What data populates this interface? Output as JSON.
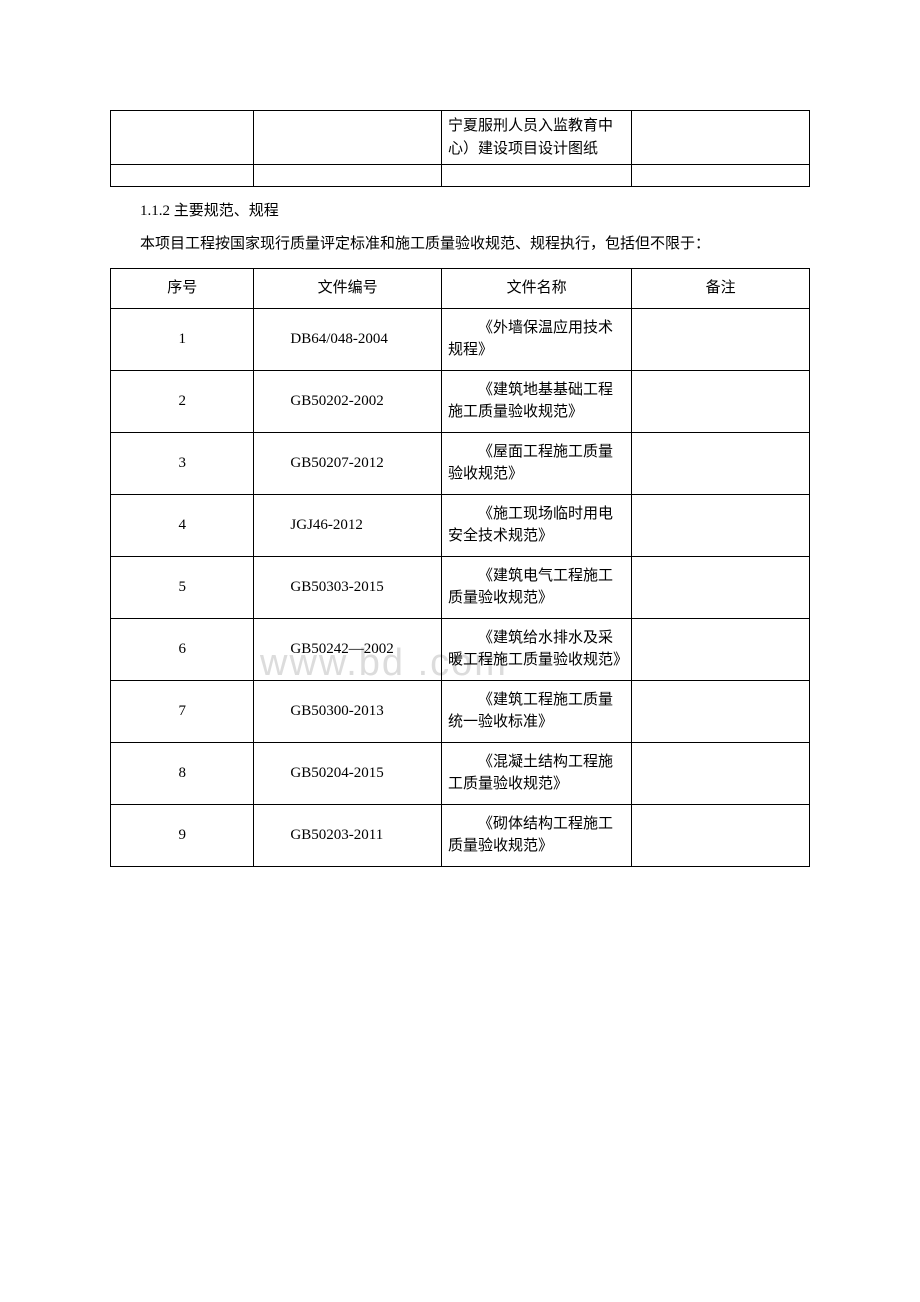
{
  "colors": {
    "text": "#000000",
    "background": "#ffffff",
    "border": "#000000",
    "watermark": "#dcdcdc"
  },
  "typography": {
    "body_font": "SimSun",
    "body_size_pt": 11,
    "watermark_font": "Arial",
    "watermark_size_pt": 28
  },
  "watermark_text": "www.bd           .com",
  "top_table": {
    "rows": [
      {
        "c1": "",
        "c2": "",
        "c3": "宁夏服刑人员入监教育中心）建设项目设计图纸",
        "c4": ""
      },
      {
        "c1": "",
        "c2": "",
        "c3": "",
        "c4": ""
      }
    ],
    "col_widths_pct": [
      20.5,
      26.8,
      27.2,
      25.4
    ]
  },
  "section_heading": "1.1.2 主要规范、规程",
  "paragraph": "本项目工程按国家现行质量评定标准和施工质量验收规范、规程执行，包括但不限于：",
  "main_table": {
    "type": "table",
    "col_widths_pct": [
      20.5,
      26.8,
      27.2,
      25.4
    ],
    "columns": [
      "序号",
      "文件编号",
      "文件名称",
      "备注"
    ],
    "rows": [
      {
        "seq": "1",
        "doc": "DB64/048-2004",
        "name": "《外墙保温应用技术规程》",
        "note": ""
      },
      {
        "seq": "2",
        "doc": "GB50202-2002",
        "name": "《建筑地基基础工程施工质量验收规范》",
        "note": ""
      },
      {
        "seq": "3",
        "doc": "GB50207-2012",
        "name": "《屋面工程施工质量验收规范》",
        "note": ""
      },
      {
        "seq": "4",
        "doc": "JGJ46-2012",
        "name": "《施工现场临时用电安全技术规范》",
        "note": ""
      },
      {
        "seq": "5",
        "doc": "GB50303-2015",
        "name": "《建筑电气工程施工质量验收规范》",
        "note": ""
      },
      {
        "seq": "6",
        "doc": "GB50242—2002",
        "name": "《建筑给水排水及采暖工程施工质量验收规范》",
        "note": ""
      },
      {
        "seq": "7",
        "doc": "GB50300-2013",
        "name": "《建筑工程施工质量统一验收标准》",
        "note": ""
      },
      {
        "seq": "8",
        "doc": "GB50204-2015",
        "name": "《混凝土结构工程施工质量验收规范》",
        "note": ""
      },
      {
        "seq": "9",
        "doc": "GB50203-2011",
        "name": "《砌体结构工程施工质量验收规范》",
        "note": ""
      }
    ]
  }
}
